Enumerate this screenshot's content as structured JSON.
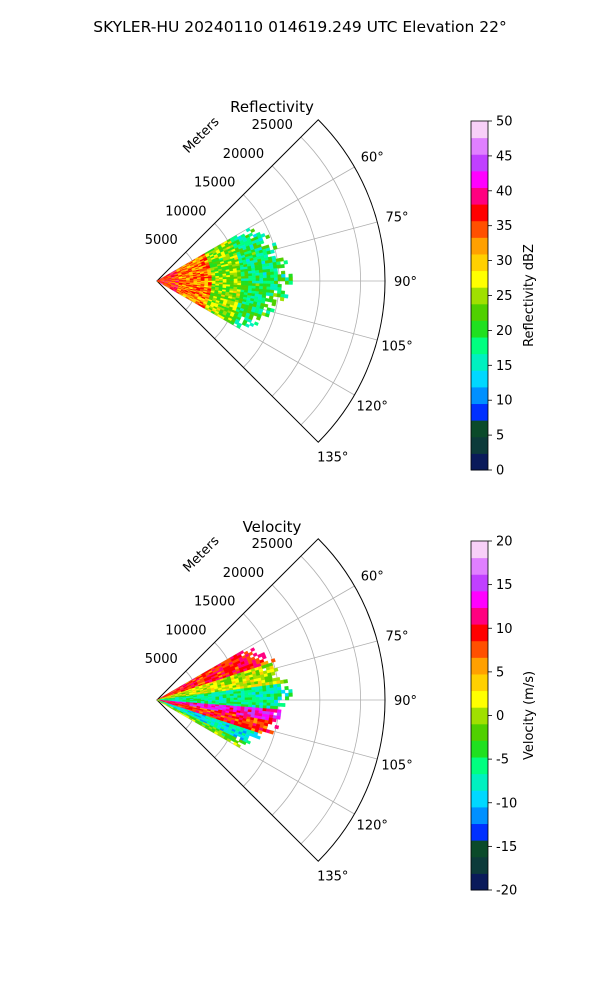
{
  "figure": {
    "suptitle": "SKYLER-HU  20240110  014619.249 UTC Elevation 22°"
  },
  "chart_data": [
    {
      "type": "heatmap",
      "projection": "polar-sector",
      "title": "Reflectivity",
      "radial_axis_label": "Meters",
      "radial_ticks": [
        5000,
        10000,
        15000,
        20000,
        25000
      ],
      "radial_tick_labels": [
        "5000",
        "10000",
        "15000",
        "20000",
        "25000"
      ],
      "radial_range": [
        0,
        28000
      ],
      "angular_range_deg": [
        45,
        135
      ],
      "angular_ticks": [
        60,
        75,
        90,
        105,
        120,
        135
      ],
      "angular_tick_labels": [
        "60°",
        "75°",
        "90°",
        "105°",
        "120°",
        "135°"
      ],
      "grid": true,
      "data_extent": {
        "azimuth_deg": [
          60,
          119
        ],
        "range_m": [
          0,
          16500
        ],
        "profile": [
          {
            "azimuth": 60,
            "max_range": 12500
          },
          {
            "azimuth": 70,
            "max_range": 15000
          },
          {
            "azimuth": 80,
            "max_range": 16000
          },
          {
            "azimuth": 90,
            "max_range": 16500
          },
          {
            "azimuth": 100,
            "max_range": 15500
          },
          {
            "azimuth": 110,
            "max_range": 14000
          },
          {
            "azimuth": 119,
            "max_range": 11500
          }
        ]
      },
      "field_description": [
        {
          "range_m": [
            0,
            2500
          ],
          "value_dBZ": 36
        },
        {
          "range_m": [
            2500,
            6500
          ],
          "value_dBZ": 33
        },
        {
          "range_m": [
            6500,
            10000
          ],
          "value_dBZ": 24
        },
        {
          "range_m": [
            10000,
            16500
          ],
          "value_dBZ": 19
        }
      ],
      "colorbar": {
        "label": "Reflectivity dBZ",
        "min": 0,
        "max": 50,
        "ticks": [
          0,
          5,
          10,
          15,
          20,
          25,
          30,
          35,
          40,
          45,
          50
        ],
        "tick_labels": [
          "0",
          "5",
          "10",
          "15",
          "20",
          "25",
          "30",
          "35",
          "40",
          "45",
          "50"
        ],
        "colors": [
          "#0a1a5a",
          "#0c3a3a",
          "#0a4a2a",
          "#0030ff",
          "#0090ff",
          "#00d8ff",
          "#00f0c0",
          "#00ff80",
          "#20e020",
          "#50d000",
          "#a0e000",
          "#ffff00",
          "#ffd000",
          "#ffa000",
          "#ff5000",
          "#ff0000",
          "#ff0080",
          "#ff00ff",
          "#c040ff",
          "#e080ff",
          "#f8d0f8"
        ]
      }
    },
    {
      "type": "heatmap",
      "projection": "polar-sector",
      "title": "Velocity",
      "radial_axis_label": "Meters",
      "radial_ticks": [
        5000,
        10000,
        15000,
        20000,
        25000
      ],
      "radial_tick_labels": [
        "5000",
        "10000",
        "15000",
        "20000",
        "25000"
      ],
      "radial_range": [
        0,
        28000
      ],
      "angular_range_deg": [
        45,
        135
      ],
      "angular_ticks": [
        60,
        75,
        90,
        105,
        120,
        135
      ],
      "angular_tick_labels": [
        "60°",
        "75°",
        "90°",
        "105°",
        "120°",
        "135°"
      ],
      "grid": true,
      "data_extent": {
        "azimuth_deg": [
          60,
          119
        ],
        "range_m": [
          0,
          16500
        ]
      },
      "field_description": [
        {
          "azimuth_deg": [
            60,
            72
          ],
          "value_ms": 9
        },
        {
          "azimuth_deg": [
            72,
            82
          ],
          "value_ms": 1
        },
        {
          "azimuth_deg": [
            82,
            94
          ],
          "value_ms": -6
        },
        {
          "azimuth_deg": [
            94,
            100
          ],
          "value_ms": 13
        },
        {
          "azimuth_deg": [
            100,
            108
          ],
          "value_ms": 9
        },
        {
          "azimuth_deg": [
            108,
            115
          ],
          "value_ms": -8
        },
        {
          "azimuth_deg": [
            115,
            119
          ],
          "value_ms": -2
        }
      ],
      "colorbar": {
        "label": "Velocity (m/s)",
        "min": -20,
        "max": 20,
        "ticks": [
          -20,
          -15,
          -10,
          -5,
          0,
          5,
          10,
          15,
          20
        ],
        "tick_labels": [
          "-20",
          "-15",
          "-10",
          "-5",
          "0",
          "5",
          "10",
          "15",
          "20"
        ],
        "colors": [
          "#0a1a5a",
          "#0c3a3a",
          "#0a4a2a",
          "#0030ff",
          "#0090ff",
          "#00d8ff",
          "#00f0c0",
          "#00ff80",
          "#20e020",
          "#50d000",
          "#a0e000",
          "#ffff00",
          "#ffd000",
          "#ffa000",
          "#ff5000",
          "#ff0000",
          "#ff0080",
          "#ff00ff",
          "#c040ff",
          "#e080ff",
          "#f8d0f8"
        ]
      }
    }
  ]
}
